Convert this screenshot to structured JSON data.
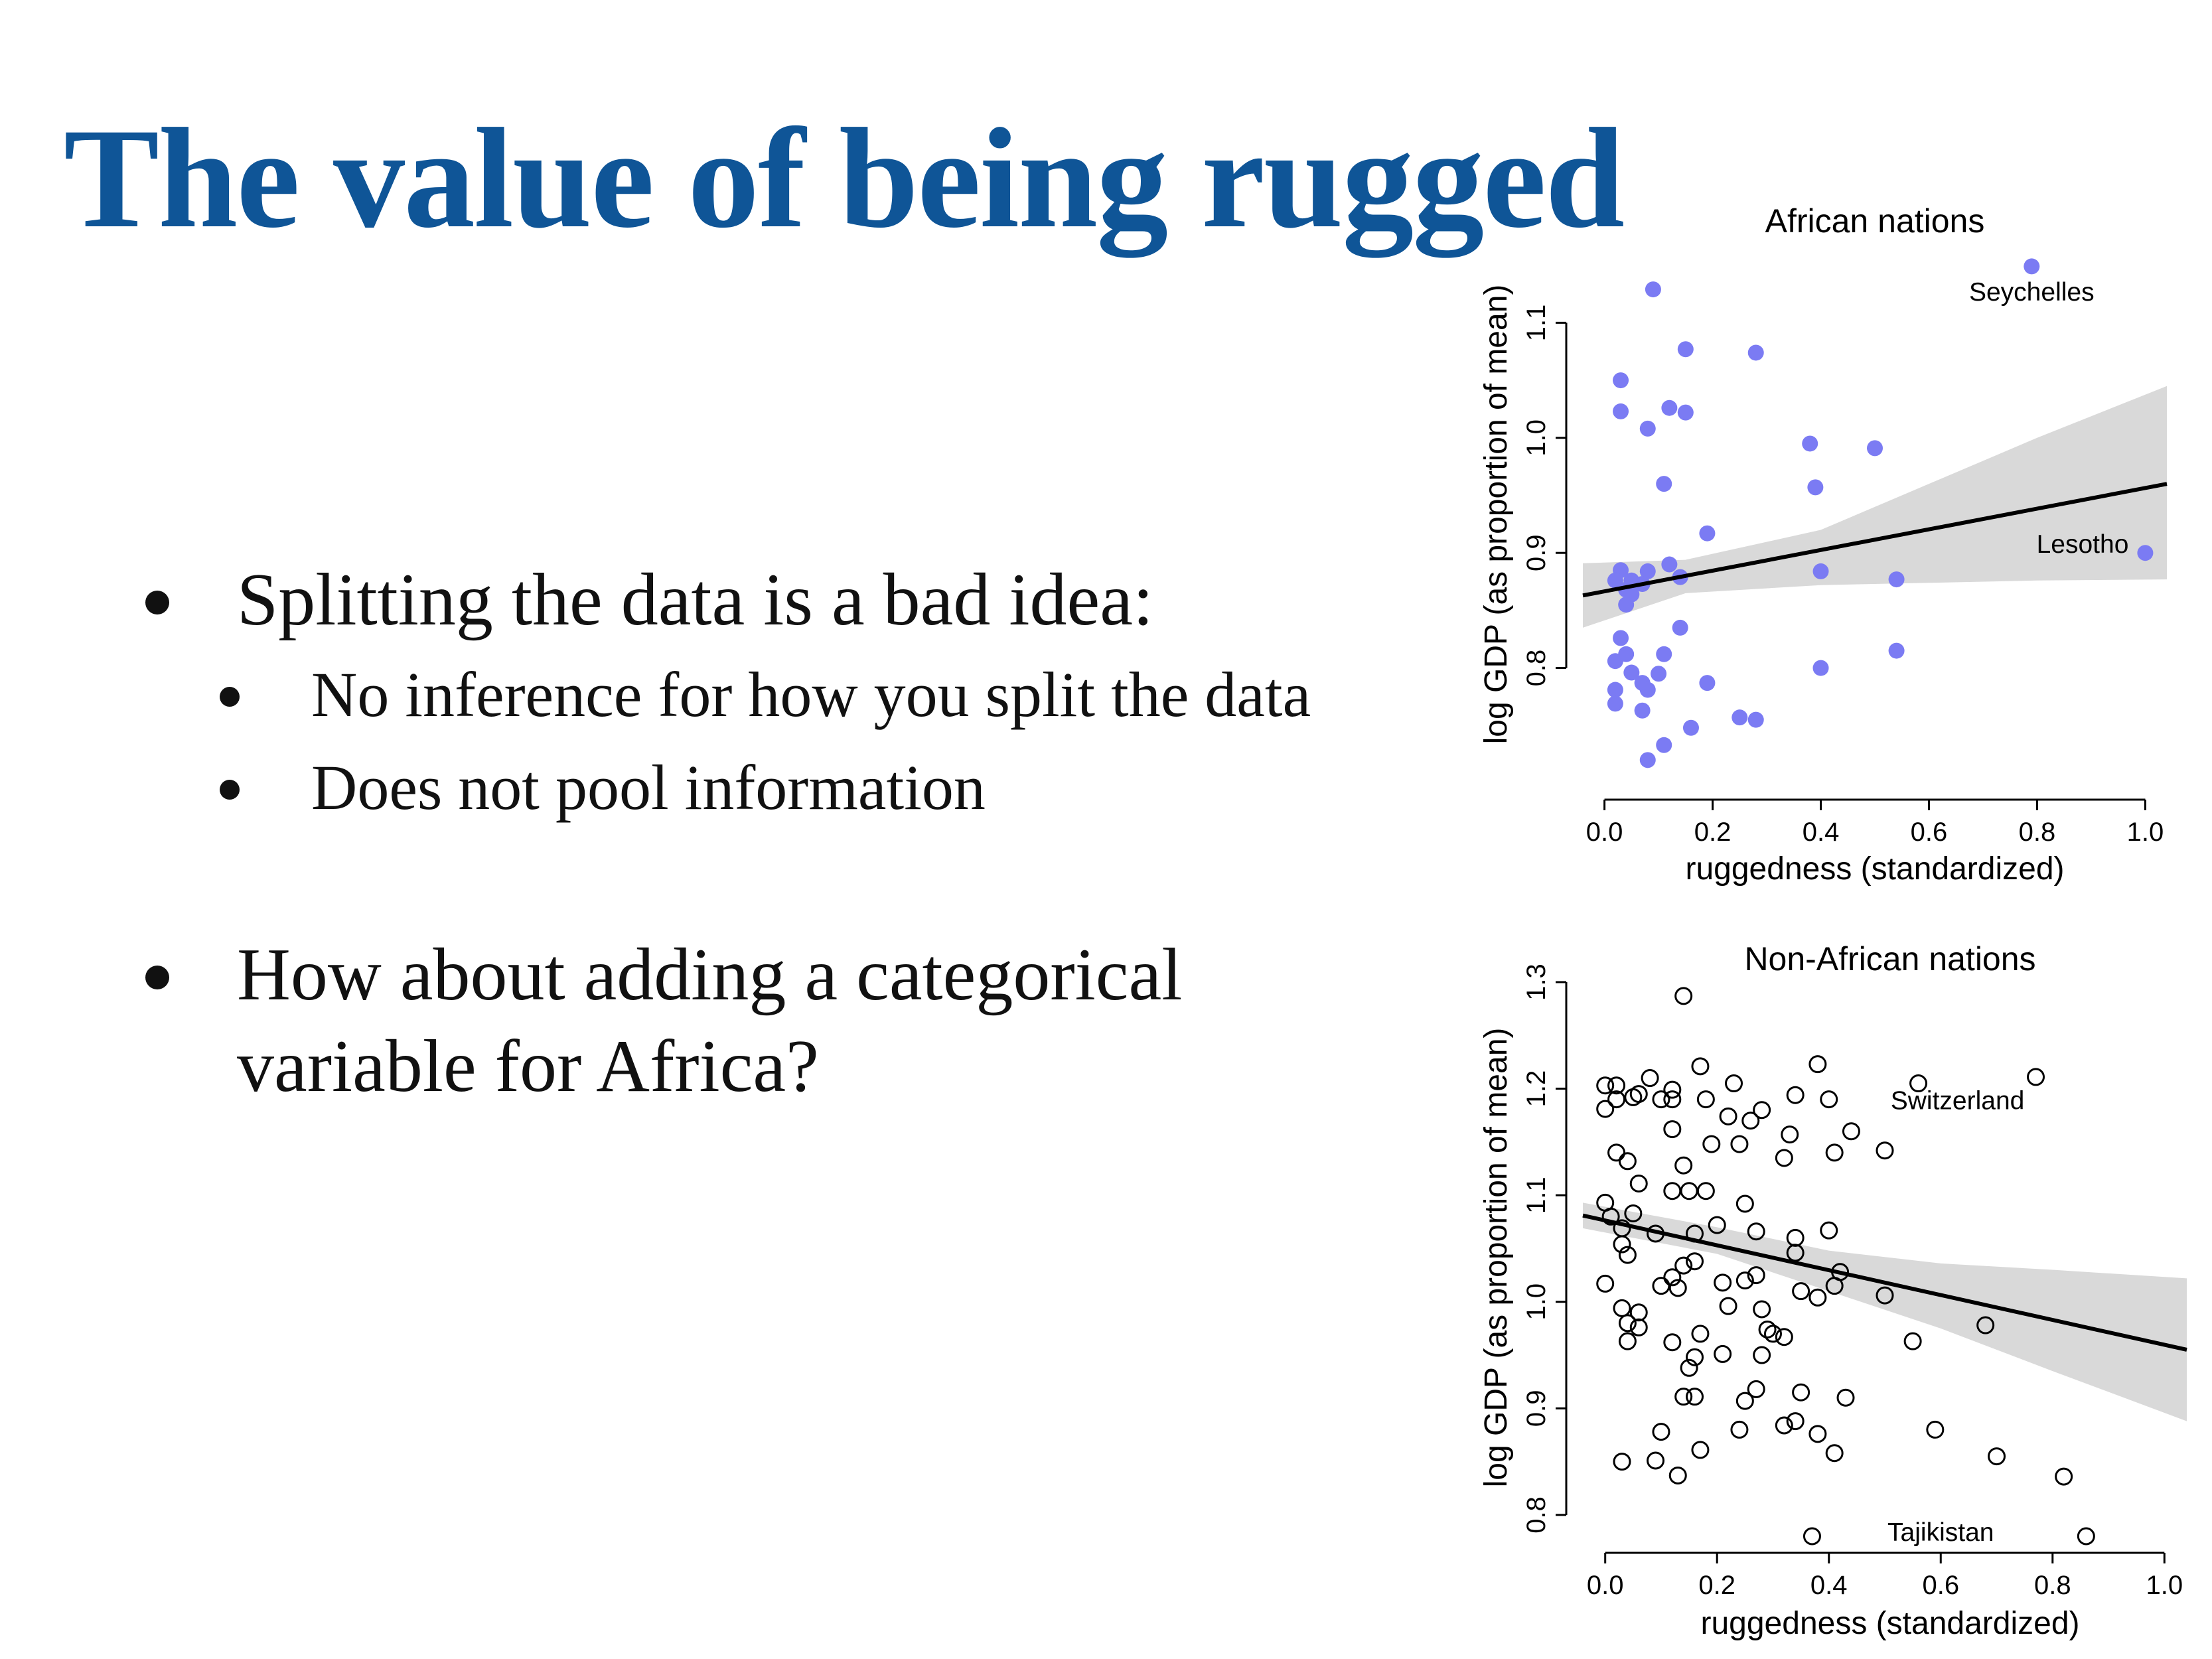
{
  "slide": {
    "title": "The value of being rugged",
    "bullets": [
      {
        "text": "Splitting the data is a bad idea:",
        "level": 1
      },
      {
        "text": "No inference for how you split the data",
        "level": 2
      },
      {
        "text": "Does not pool information",
        "level": 2
      },
      {
        "text": "How about adding a categorical",
        "level": 1
      },
      {
        "text": "variable for Africa?",
        "level": 1,
        "continuation": true
      }
    ]
  },
  "chart_data": [
    {
      "type": "scatter",
      "title": "African nations",
      "xlabel": "ruggedness (standardized)",
      "ylabel": "log GDP (as proportion of mean)",
      "xlim": [
        -0.04,
        1.04
      ],
      "ylim": [
        0.7,
        1.17
      ],
      "xticks": [
        "0.0",
        "0.2",
        "0.4",
        "0.6",
        "0.8",
        "1.0"
      ],
      "yticks": [
        "0.8",
        "0.9",
        "1.0",
        "1.1"
      ],
      "marker": "filled",
      "point_color": "#7b7bf3",
      "band_color": "#d9d9d9",
      "fit_line": {
        "x": [
          -0.04,
          1.04
        ],
        "y": [
          0.863,
          0.96
        ]
      },
      "band_upper": {
        "x": [
          -0.04,
          0.15,
          0.4,
          0.6,
          0.8,
          1.04
        ],
        "y": [
          0.891,
          0.894,
          0.92,
          0.96,
          1.0,
          1.045
        ]
      },
      "band_lower": {
        "x": [
          -0.04,
          0.15,
          0.4,
          0.6,
          0.8,
          1.04
        ],
        "y": [
          0.835,
          0.865,
          0.872,
          0.874,
          0.876,
          0.877
        ]
      },
      "annotations": [
        {
          "text": "Seychelles",
          "x": 0.79,
          "y": 1.148
        },
        {
          "text": "Lesotho",
          "x": 0.89,
          "y": 0.9
        }
      ],
      "points": [
        [
          0.79,
          1.149
        ],
        [
          1.0,
          0.9
        ],
        [
          0.09,
          1.129
        ],
        [
          0.15,
          1.077
        ],
        [
          0.28,
          1.074
        ],
        [
          0.03,
          1.05
        ],
        [
          0.03,
          1.023
        ],
        [
          0.12,
          1.026
        ],
        [
          0.15,
          1.022
        ],
        [
          0.08,
          1.008
        ],
        [
          0.38,
          0.995
        ],
        [
          0.5,
          0.991
        ],
        [
          0.11,
          0.96
        ],
        [
          0.39,
          0.957
        ],
        [
          0.19,
          0.917
        ],
        [
          0.12,
          0.89
        ],
        [
          0.03,
          0.885
        ],
        [
          0.08,
          0.884
        ],
        [
          0.4,
          0.884
        ],
        [
          0.14,
          0.879
        ],
        [
          0.54,
          0.877
        ],
        [
          0.02,
          0.876
        ],
        [
          0.05,
          0.876
        ],
        [
          0.07,
          0.873
        ],
        [
          0.04,
          0.868
        ],
        [
          0.05,
          0.864
        ],
        [
          0.04,
          0.855
        ],
        [
          0.14,
          0.835
        ],
        [
          0.03,
          0.826
        ],
        [
          0.04,
          0.812
        ],
        [
          0.02,
          0.806
        ],
        [
          0.11,
          0.812
        ],
        [
          0.54,
          0.815
        ],
        [
          0.05,
          0.796
        ],
        [
          0.1,
          0.795
        ],
        [
          0.07,
          0.787
        ],
        [
          0.19,
          0.787
        ],
        [
          0.4,
          0.8
        ],
        [
          0.02,
          0.781
        ],
        [
          0.08,
          0.781
        ],
        [
          0.02,
          0.769
        ],
        [
          0.07,
          0.763
        ],
        [
          0.25,
          0.757
        ],
        [
          0.28,
          0.755
        ],
        [
          0.16,
          0.748
        ],
        [
          0.11,
          0.733
        ],
        [
          0.08,
          0.72
        ]
      ]
    },
    {
      "type": "scatter",
      "title": "Non-African nations",
      "xlabel": "ruggedness (standardized)",
      "ylabel": "log GDP (as proportion of mean)",
      "xlim": [
        -0.04,
        1.04
      ],
      "ylim": [
        0.78,
        1.3
      ],
      "xticks": [
        "0.0",
        "0.2",
        "0.4",
        "0.6",
        "0.8",
        "1.0"
      ],
      "yticks": [
        "0.8",
        "0.9",
        "1.0",
        "1.1",
        "1.2",
        "1.3"
      ],
      "marker": "open",
      "point_color": "#000000",
      "band_color": "#d9d9d9",
      "fit_line": {
        "x": [
          -0.04,
          1.04
        ],
        "y": [
          1.081,
          0.955
        ]
      },
      "band_upper": {
        "x": [
          -0.04,
          0.2,
          0.4,
          0.6,
          0.8,
          1.04
        ],
        "y": [
          1.093,
          1.07,
          1.048,
          1.036,
          1.03,
          1.022
        ]
      },
      "band_lower": {
        "x": [
          -0.04,
          0.2,
          0.4,
          0.6,
          0.8,
          1.04
        ],
        "y": [
          1.069,
          1.045,
          1.01,
          0.975,
          0.935,
          0.888
        ]
      },
      "annotations": [
        {
          "text": "Switzerland",
          "x": 0.63,
          "y": 1.19
        },
        {
          "text": "Tajikistan",
          "x": 0.6,
          "y": 0.785
        }
      ],
      "points": [
        [
          0.77,
          1.211
        ],
        [
          0.86,
          0.78
        ],
        [
          0.14,
          1.287
        ],
        [
          0.38,
          1.223
        ],
        [
          0.17,
          1.221
        ],
        [
          0.0,
          1.203
        ],
        [
          0.02,
          1.203
        ],
        [
          0.06,
          1.195
        ],
        [
          0.08,
          1.21
        ],
        [
          0.12,
          1.199
        ],
        [
          0.23,
          1.205
        ],
        [
          0.34,
          1.194
        ],
        [
          0.4,
          1.19
        ],
        [
          0.56,
          1.205
        ],
        [
          0.02,
          1.19
        ],
        [
          0.05,
          1.192
        ],
        [
          0.0,
          1.181
        ],
        [
          0.1,
          1.19
        ],
        [
          0.12,
          1.19
        ],
        [
          0.18,
          1.19
        ],
        [
          0.22,
          1.174
        ],
        [
          0.26,
          1.17
        ],
        [
          0.28,
          1.18
        ],
        [
          0.12,
          1.162
        ],
        [
          0.19,
          1.148
        ],
        [
          0.33,
          1.157
        ],
        [
          0.24,
          1.148
        ],
        [
          0.44,
          1.16
        ],
        [
          0.41,
          1.14
        ],
        [
          0.5,
          1.142
        ],
        [
          0.02,
          1.14
        ],
        [
          0.04,
          1.132
        ],
        [
          0.14,
          1.128
        ],
        [
          0.32,
          1.135
        ],
        [
          0.06,
          1.111
        ],
        [
          0.12,
          1.104
        ],
        [
          0.15,
          1.104
        ],
        [
          0.18,
          1.104
        ],
        [
          0.0,
          1.093
        ],
        [
          0.01,
          1.08
        ],
        [
          0.05,
          1.083
        ],
        [
          0.25,
          1.092
        ],
        [
          0.03,
          1.069
        ],
        [
          0.09,
          1.064
        ],
        [
          0.16,
          1.064
        ],
        [
          0.2,
          1.072
        ],
        [
          0.27,
          1.066
        ],
        [
          0.34,
          1.06
        ],
        [
          0.4,
          1.067
        ],
        [
          0.03,
          1.054
        ],
        [
          0.04,
          1.044
        ],
        [
          0.14,
          1.034
        ],
        [
          0.16,
          1.038
        ],
        [
          0.34,
          1.046
        ],
        [
          0.12,
          1.023
        ],
        [
          0.21,
          1.018
        ],
        [
          0.25,
          1.02
        ],
        [
          0.27,
          1.025
        ],
        [
          0.42,
          1.028
        ],
        [
          0.0,
          1.017
        ],
        [
          0.1,
          1.015
        ],
        [
          0.13,
          1.013
        ],
        [
          0.35,
          1.01
        ],
        [
          0.38,
          1.004
        ],
        [
          0.41,
          1.015
        ],
        [
          0.5,
          1.006
        ],
        [
          0.03,
          0.994
        ],
        [
          0.06,
          0.99
        ],
        [
          0.22,
          0.996
        ],
        [
          0.28,
          0.993
        ],
        [
          0.04,
          0.98
        ],
        [
          0.06,
          0.976
        ],
        [
          0.17,
          0.97
        ],
        [
          0.29,
          0.974
        ],
        [
          0.3,
          0.97
        ],
        [
          0.32,
          0.967
        ],
        [
          0.04,
          0.963
        ],
        [
          0.12,
          0.962
        ],
        [
          0.16,
          0.948
        ],
        [
          0.21,
          0.951
        ],
        [
          0.28,
          0.95
        ],
        [
          0.15,
          0.938
        ],
        [
          0.55,
          0.963
        ],
        [
          0.68,
          0.978
        ],
        [
          0.27,
          0.918
        ],
        [
          0.35,
          0.915
        ],
        [
          0.14,
          0.911
        ],
        [
          0.16,
          0.911
        ],
        [
          0.25,
          0.907
        ],
        [
          0.43,
          0.91
        ],
        [
          0.1,
          0.878
        ],
        [
          0.24,
          0.88
        ],
        [
          0.32,
          0.884
        ],
        [
          0.34,
          0.888
        ],
        [
          0.38,
          0.876
        ],
        [
          0.59,
          0.88
        ],
        [
          0.17,
          0.861
        ],
        [
          0.41,
          0.858
        ],
        [
          0.7,
          0.855
        ],
        [
          0.03,
          0.85
        ],
        [
          0.09,
          0.851
        ],
        [
          0.13,
          0.837
        ],
        [
          0.82,
          0.836
        ],
        [
          0.37,
          0.78
        ]
      ]
    }
  ]
}
